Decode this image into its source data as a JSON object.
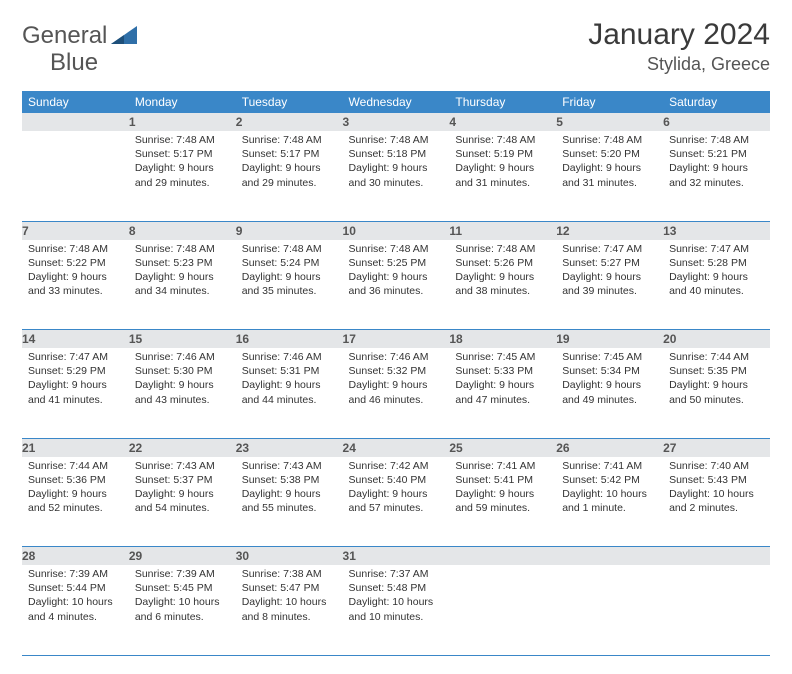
{
  "brand": {
    "general": "General",
    "blue": "Blue"
  },
  "title": "January 2024",
  "location": "Stylida, Greece",
  "colors": {
    "header_bg": "#3a87c8",
    "header_fg": "#ffffff",
    "daynum_bg": "#e4e6e8",
    "daynum_fg": "#555555",
    "rule": "#3a87c8",
    "text": "#333333"
  },
  "weekdays": [
    "Sunday",
    "Monday",
    "Tuesday",
    "Wednesday",
    "Thursday",
    "Friday",
    "Saturday"
  ],
  "weeks": [
    [
      null,
      {
        "n": "1",
        "sr": "7:48 AM",
        "ss": "5:17 PM",
        "dl": "Daylight: 9 hours and 29 minutes."
      },
      {
        "n": "2",
        "sr": "7:48 AM",
        "ss": "5:17 PM",
        "dl": "Daylight: 9 hours and 29 minutes."
      },
      {
        "n": "3",
        "sr": "7:48 AM",
        "ss": "5:18 PM",
        "dl": "Daylight: 9 hours and 30 minutes."
      },
      {
        "n": "4",
        "sr": "7:48 AM",
        "ss": "5:19 PM",
        "dl": "Daylight: 9 hours and 31 minutes."
      },
      {
        "n": "5",
        "sr": "7:48 AM",
        "ss": "5:20 PM",
        "dl": "Daylight: 9 hours and 31 minutes."
      },
      {
        "n": "6",
        "sr": "7:48 AM",
        "ss": "5:21 PM",
        "dl": "Daylight: 9 hours and 32 minutes."
      }
    ],
    [
      {
        "n": "7",
        "sr": "7:48 AM",
        "ss": "5:22 PM",
        "dl": "Daylight: 9 hours and 33 minutes."
      },
      {
        "n": "8",
        "sr": "7:48 AM",
        "ss": "5:23 PM",
        "dl": "Daylight: 9 hours and 34 minutes."
      },
      {
        "n": "9",
        "sr": "7:48 AM",
        "ss": "5:24 PM",
        "dl": "Daylight: 9 hours and 35 minutes."
      },
      {
        "n": "10",
        "sr": "7:48 AM",
        "ss": "5:25 PM",
        "dl": "Daylight: 9 hours and 36 minutes."
      },
      {
        "n": "11",
        "sr": "7:48 AM",
        "ss": "5:26 PM",
        "dl": "Daylight: 9 hours and 38 minutes."
      },
      {
        "n": "12",
        "sr": "7:47 AM",
        "ss": "5:27 PM",
        "dl": "Daylight: 9 hours and 39 minutes."
      },
      {
        "n": "13",
        "sr": "7:47 AM",
        "ss": "5:28 PM",
        "dl": "Daylight: 9 hours and 40 minutes."
      }
    ],
    [
      {
        "n": "14",
        "sr": "7:47 AM",
        "ss": "5:29 PM",
        "dl": "Daylight: 9 hours and 41 minutes."
      },
      {
        "n": "15",
        "sr": "7:46 AM",
        "ss": "5:30 PM",
        "dl": "Daylight: 9 hours and 43 minutes."
      },
      {
        "n": "16",
        "sr": "7:46 AM",
        "ss": "5:31 PM",
        "dl": "Daylight: 9 hours and 44 minutes."
      },
      {
        "n": "17",
        "sr": "7:46 AM",
        "ss": "5:32 PM",
        "dl": "Daylight: 9 hours and 46 minutes."
      },
      {
        "n": "18",
        "sr": "7:45 AM",
        "ss": "5:33 PM",
        "dl": "Daylight: 9 hours and 47 minutes."
      },
      {
        "n": "19",
        "sr": "7:45 AM",
        "ss": "5:34 PM",
        "dl": "Daylight: 9 hours and 49 minutes."
      },
      {
        "n": "20",
        "sr": "7:44 AM",
        "ss": "5:35 PM",
        "dl": "Daylight: 9 hours and 50 minutes."
      }
    ],
    [
      {
        "n": "21",
        "sr": "7:44 AM",
        "ss": "5:36 PM",
        "dl": "Daylight: 9 hours and 52 minutes."
      },
      {
        "n": "22",
        "sr": "7:43 AM",
        "ss": "5:37 PM",
        "dl": "Daylight: 9 hours and 54 minutes."
      },
      {
        "n": "23",
        "sr": "7:43 AM",
        "ss": "5:38 PM",
        "dl": "Daylight: 9 hours and 55 minutes."
      },
      {
        "n": "24",
        "sr": "7:42 AM",
        "ss": "5:40 PM",
        "dl": "Daylight: 9 hours and 57 minutes."
      },
      {
        "n": "25",
        "sr": "7:41 AM",
        "ss": "5:41 PM",
        "dl": "Daylight: 9 hours and 59 minutes."
      },
      {
        "n": "26",
        "sr": "7:41 AM",
        "ss": "5:42 PM",
        "dl": "Daylight: 10 hours and 1 minute."
      },
      {
        "n": "27",
        "sr": "7:40 AM",
        "ss": "5:43 PM",
        "dl": "Daylight: 10 hours and 2 minutes."
      }
    ],
    [
      {
        "n": "28",
        "sr": "7:39 AM",
        "ss": "5:44 PM",
        "dl": "Daylight: 10 hours and 4 minutes."
      },
      {
        "n": "29",
        "sr": "7:39 AM",
        "ss": "5:45 PM",
        "dl": "Daylight: 10 hours and 6 minutes."
      },
      {
        "n": "30",
        "sr": "7:38 AM",
        "ss": "5:47 PM",
        "dl": "Daylight: 10 hours and 8 minutes."
      },
      {
        "n": "31",
        "sr": "7:37 AM",
        "ss": "5:48 PM",
        "dl": "Daylight: 10 hours and 10 minutes."
      },
      null,
      null,
      null
    ]
  ],
  "labels": {
    "sunrise": "Sunrise:",
    "sunset": "Sunset:"
  }
}
